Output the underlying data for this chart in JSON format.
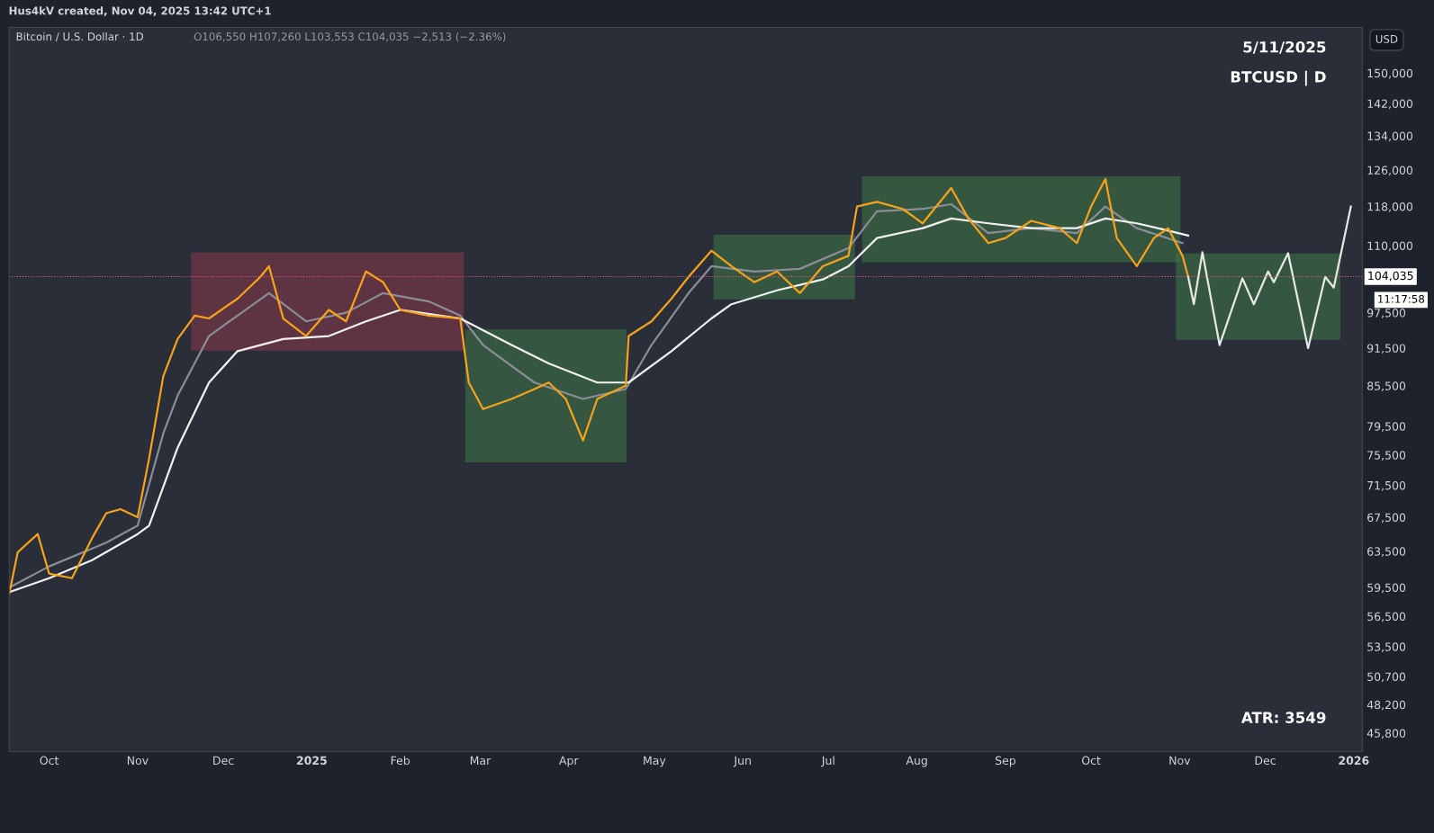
{
  "chart_data": {
    "type": "line",
    "title": "Bitcoin / U.S. Dollar · 1D",
    "subtitle": "O106,550 H107,260 L103,553 C104,035 −2,513 (−2.36%)",
    "annotations": [
      "Hus4kV created, Nov 04, 2025 13:42 UTC+1",
      "5/11/2025",
      "BTCUSD | D",
      "ATR: 3549",
      "USD",
      "11:17:58"
    ],
    "log": "y",
    "grid": false,
    "legend": false,
    "xlim": [
      "2024-09-17",
      "2026-01-04"
    ],
    "xticks": [
      {
        "value": "2024-10-01",
        "label": "Oct"
      },
      {
        "value": "2024-11-01",
        "label": "Nov"
      },
      {
        "value": "2024-12-01",
        "label": "Dec"
      },
      {
        "value": "2025-01-01",
        "label": "2025"
      },
      {
        "value": "2025-02-01",
        "label": "Feb"
      },
      {
        "value": "2025-03-01",
        "label": "Mar"
      },
      {
        "value": "2025-04-01",
        "label": "Apr"
      },
      {
        "value": "2025-05-01",
        "label": "May"
      },
      {
        "value": "2025-06-01",
        "label": "Jun"
      },
      {
        "value": "2025-07-01",
        "label": "Jul"
      },
      {
        "value": "2025-08-01",
        "label": "Aug"
      },
      {
        "value": "2025-09-01",
        "label": "Sep"
      },
      {
        "value": "2025-10-01",
        "label": "Oct"
      },
      {
        "value": "2025-11-01",
        "label": "Nov"
      },
      {
        "value": "2025-12-01",
        "label": "Dec"
      },
      {
        "value": "2026-01-01",
        "label": "2026"
      }
    ],
    "ylim": [
      44300,
      162800
    ],
    "yticks": [
      {
        "value": 45800,
        "label": "45,800"
      },
      {
        "value": 48200,
        "label": "48,200"
      },
      {
        "value": 50700,
        "label": "50,700"
      },
      {
        "value": 53500,
        "label": "53,500"
      },
      {
        "value": 56500,
        "label": "56,500"
      },
      {
        "value": 59500,
        "label": "59,500"
      },
      {
        "value": 63500,
        "label": "63,500"
      },
      {
        "value": 67500,
        "label": "67,500"
      },
      {
        "value": 71500,
        "label": "71,500"
      },
      {
        "value": 75500,
        "label": "75,500"
      },
      {
        "value": 79500,
        "label": "79,500"
      },
      {
        "value": 85500,
        "label": "85,500"
      },
      {
        "value": 91500,
        "label": "91,500"
      },
      {
        "value": 97500,
        "label": "97,500"
      },
      {
        "value": 110000,
        "label": "110,000"
      },
      {
        "value": 118000,
        "label": "118,000"
      },
      {
        "value": 126000,
        "label": "126,000"
      },
      {
        "value": 134000,
        "label": "134,000"
      },
      {
        "value": 142000,
        "label": "142,000"
      },
      {
        "value": 150000,
        "label": "150,000"
      }
    ],
    "ref_lines": [
      {
        "axis": "y",
        "value": 104035,
        "label": "104,035",
        "color": "#e0607a",
        "line_style": "dotted"
      }
    ],
    "series": [
      {
        "type": "area",
        "color": "#8b3a4a",
        "x": [
          "2024-11-20",
          "2024-11-20",
          "2025-02-23",
          "2025-02-23",
          "2024-11-20"
        ],
        "values": [
          91200,
          108500,
          108500,
          91200,
          91200
        ]
      },
      {
        "type": "area",
        "color": "#3e7a48",
        "x": [
          "2025-02-24",
          "2025-02-24",
          "2025-04-21",
          "2025-04-21",
          "2025-02-24"
        ],
        "values": [
          74600,
          94500,
          94500,
          74600,
          74600
        ]
      },
      {
        "type": "area",
        "color": "#3e7a48",
        "x": [
          "2025-05-22",
          "2025-05-22",
          "2025-07-10",
          "2025-07-10",
          "2025-05-22"
        ],
        "values": [
          100000,
          112000,
          112000,
          100000,
          100000
        ]
      },
      {
        "type": "area",
        "color": "#3e7a48",
        "x": [
          "2025-07-13",
          "2025-07-13",
          "2025-11-01",
          "2025-11-01",
          "2025-07-13"
        ],
        "values": [
          106900,
          124400,
          124400,
          106900,
          106900
        ]
      },
      {
        "type": "area",
        "color": "#3e7a48",
        "x": [
          "2025-10-31",
          "2025-10-31",
          "2025-12-27",
          "2025-12-27",
          "2025-10-31"
        ],
        "values": [
          93000,
          108300,
          108300,
          93000,
          93000
        ]
      },
      {
        "color": "#8a8d96",
        "x": [
          "2024-09-17",
          "2024-10-01",
          "2024-10-21",
          "2024-11-01",
          "2024-11-10",
          "2024-11-15",
          "2024-11-26",
          "2024-12-06",
          "2024-12-17",
          "2024-12-30",
          "2025-01-13",
          "2025-01-26",
          "2025-02-11",
          "2025-02-22",
          "2025-03-02",
          "2025-03-20",
          "2025-04-06",
          "2025-04-21",
          "2025-04-30",
          "2025-05-13",
          "2025-05-21",
          "2025-06-05",
          "2025-06-21",
          "2025-07-08",
          "2025-07-18",
          "2025-08-03",
          "2025-08-13",
          "2025-08-26",
          "2025-09-10",
          "2025-09-26",
          "2025-10-06",
          "2025-10-17",
          "2025-11-02"
        ],
        "values": [
          59500,
          61800,
          64500,
          66500,
          78500,
          84000,
          93500,
          97000,
          101000,
          96000,
          97500,
          101000,
          99500,
          97000,
          92000,
          86000,
          83500,
          85000,
          92000,
          101000,
          106000,
          105000,
          105500,
          109500,
          117000,
          117500,
          118500,
          112500,
          113500,
          112500,
          118000,
          113500,
          110500
        ]
      },
      {
        "color": "#f0f0f0",
        "x": [
          "2024-09-17",
          "2024-10-01",
          "2024-10-16",
          "2024-11-01",
          "2024-11-05",
          "2024-11-15",
          "2024-11-26",
          "2024-12-06",
          "2024-12-22",
          "2025-01-07",
          "2025-01-20",
          "2025-02-01",
          "2025-02-22",
          "2025-03-12",
          "2025-03-25",
          "2025-04-11",
          "2025-04-22",
          "2025-05-07",
          "2025-05-21",
          "2025-05-28",
          "2025-06-13",
          "2025-06-29",
          "2025-07-08",
          "2025-07-18",
          "2025-08-03",
          "2025-08-13",
          "2025-08-26",
          "2025-09-10",
          "2025-09-26",
          "2025-10-06",
          "2025-10-17",
          "2025-10-28",
          "2025-11-04"
        ],
        "values": [
          59000,
          60500,
          62500,
          65500,
          66500,
          76500,
          86000,
          91000,
          93000,
          93500,
          96000,
          98000,
          96500,
          92000,
          89000,
          86000,
          86000,
          91000,
          96500,
          99000,
          101500,
          103500,
          106000,
          111500,
          113500,
          115500,
          114500,
          113500,
          113500,
          115500,
          114500,
          113000,
          112000
        ]
      },
      {
        "color": "#f7a21b",
        "x": [
          "2024-09-17",
          "2024-09-20",
          "2024-09-27",
          "2024-10-01",
          "2024-10-09",
          "2024-10-16",
          "2024-10-21",
          "2024-10-26",
          "2024-11-01",
          "2024-11-05",
          "2024-11-10",
          "2024-11-15",
          "2024-11-21",
          "2024-11-26",
          "2024-12-06",
          "2024-12-14",
          "2024-12-17",
          "2024-12-22",
          "2024-12-30",
          "2025-01-07",
          "2025-01-13",
          "2025-01-20",
          "2025-01-26",
          "2025-02-01",
          "2025-02-11",
          "2025-02-22",
          "2025-02-25",
          "2025-03-02",
          "2025-03-12",
          "2025-03-20",
          "2025-03-25",
          "2025-03-31",
          "2025-04-06",
          "2025-04-11",
          "2025-04-21",
          "2025-04-22",
          "2025-04-30",
          "2025-05-07",
          "2025-05-13",
          "2025-05-21",
          "2025-05-28",
          "2025-06-05",
          "2025-06-13",
          "2025-06-21",
          "2025-06-29",
          "2025-07-08",
          "2025-07-11",
          "2025-07-18",
          "2025-07-27",
          "2025-08-03",
          "2025-08-13",
          "2025-08-19",
          "2025-08-26",
          "2025-09-01",
          "2025-09-10",
          "2025-09-20",
          "2025-09-26",
          "2025-10-01",
          "2025-10-06",
          "2025-10-10",
          "2025-10-17",
          "2025-10-23",
          "2025-10-28",
          "2025-11-02",
          "2025-11-04"
        ],
        "values": [
          58800,
          63400,
          65500,
          61000,
          60500,
          65000,
          68000,
          68500,
          67500,
          75000,
          87000,
          93000,
          97000,
          96500,
          100000,
          104000,
          106000,
          96500,
          93500,
          98000,
          96000,
          105000,
          103000,
          98000,
          97000,
          96500,
          86000,
          82000,
          83500,
          85000,
          86000,
          83500,
          77500,
          83500,
          85500,
          93500,
          96000,
          100000,
          104000,
          109000,
          106000,
          103000,
          105000,
          101000,
          106000,
          108000,
          118000,
          119000,
          117500,
          114500,
          122000,
          115500,
          110500,
          111500,
          115000,
          113500,
          110500,
          118000,
          124000,
          111500,
          106000,
          111500,
          113500,
          108000,
          104035
        ]
      },
      {
        "color": "#e8e8e8",
        "x": [
          "2025-11-04",
          "2025-11-06",
          "2025-11-09",
          "2025-11-15",
          "2025-11-23",
          "2025-11-27",
          "2025-12-02",
          "2025-12-04",
          "2025-12-09",
          "2025-12-16",
          "2025-12-22",
          "2025-12-25",
          "2025-12-31"
        ],
        "values": [
          104035,
          99000,
          108700,
          92000,
          103700,
          99000,
          105000,
          103000,
          108500,
          91500,
          104000,
          102000,
          118000
        ]
      }
    ]
  }
}
